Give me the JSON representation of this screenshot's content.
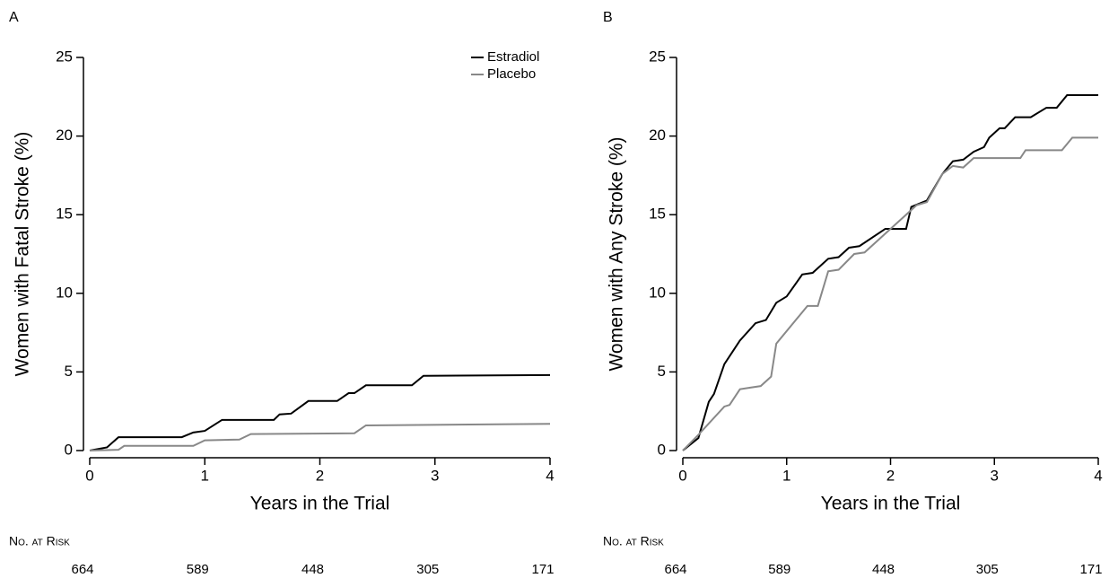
{
  "chart_data": [
    {
      "type": "line",
      "panel_label": "A",
      "xlabel": "Years in the Trial",
      "ylabel": "Women with Fatal Stroke (%)",
      "xlim": [
        0,
        4
      ],
      "xticks": [
        0,
        1,
        2,
        3,
        4
      ],
      "ylim": [
        0,
        25
      ],
      "yticks": [
        0,
        5,
        10,
        15,
        20,
        25
      ],
      "legend": "upper right",
      "series": [
        {
          "name": "Estradiol",
          "color": "#000000",
          "x": [
            0,
            0.15,
            0.25,
            0.8,
            0.9,
            1,
            1.15,
            1.6,
            1.65,
            1.75,
            1.9,
            2.15,
            2.25,
            2.3,
            2.4,
            2.8,
            2.9,
            4
          ],
          "values": [
            0,
            0.2,
            0.85,
            0.85,
            1.15,
            1.25,
            1.95,
            1.95,
            2.3,
            2.35,
            3.15,
            3.15,
            3.65,
            3.65,
            4.15,
            4.15,
            4.75,
            4.8
          ]
        },
        {
          "name": "Placebo",
          "color": "#888888",
          "x": [
            0,
            0.25,
            0.3,
            0.9,
            1,
            1.3,
            1.4,
            2.3,
            2.4,
            4
          ],
          "values": [
            0,
            0.05,
            0.3,
            0.3,
            0.65,
            0.7,
            1.05,
            1.1,
            1.6,
            1.7
          ]
        }
      ],
      "at_risk_title": "No. at Risk",
      "at_risk": [
        664,
        589,
        448,
        305,
        171
      ]
    },
    {
      "type": "line",
      "panel_label": "B",
      "xlabel": "Years in the Trial",
      "ylabel": "Women with Any Stroke (%)",
      "xlim": [
        0,
        4
      ],
      "xticks": [
        0,
        1,
        2,
        3,
        4
      ],
      "ylim": [
        0,
        25
      ],
      "yticks": [
        0,
        5,
        10,
        15,
        20,
        25
      ],
      "series": [
        {
          "color": "#000000",
          "x": [
            0,
            0.15,
            0.25,
            0.3,
            0.4,
            0.55,
            0.7,
            0.8,
            0.9,
            1,
            1.15,
            1.25,
            1.4,
            1.5,
            1.6,
            1.7,
            1.95,
            2.15,
            2.2,
            2.35,
            2.5,
            2.6,
            2.7,
            2.8,
            2.9,
            2.95,
            3.05,
            3.1,
            3.2,
            3.35,
            3.5,
            3.6,
            3.7,
            4
          ],
          "values": [
            0,
            0.8,
            3.1,
            3.6,
            5.5,
            7.0,
            8.1,
            8.3,
            9.4,
            9.8,
            11.2,
            11.3,
            12.2,
            12.3,
            12.9,
            13.0,
            14.1,
            14.1,
            15.5,
            15.9,
            17.6,
            18.4,
            18.5,
            19.0,
            19.3,
            19.9,
            20.5,
            20.5,
            21.2,
            21.2,
            21.8,
            21.8,
            22.6,
            22.6
          ]
        },
        {
          "color": "#888888",
          "x": [
            0,
            0.15,
            0.4,
            0.45,
            0.55,
            0.65,
            0.75,
            0.85,
            0.9,
            1.2,
            1.3,
            1.4,
            1.5,
            1.65,
            1.75,
            2.25,
            2.35,
            2.5,
            2.6,
            2.7,
            2.8,
            3.25,
            3.3,
            3.65,
            3.75,
            4
          ],
          "values": [
            0,
            1.0,
            2.8,
            2.9,
            3.9,
            4.0,
            4.1,
            4.7,
            6.8,
            9.2,
            9.2,
            11.4,
            11.5,
            12.5,
            12.6,
            15.6,
            15.8,
            17.6,
            18.1,
            18.0,
            18.6,
            18.6,
            19.1,
            19.1,
            19.9,
            19.9
          ]
        }
      ],
      "at_risk_title": "No. at Risk",
      "at_risk": [
        664,
        589,
        448,
        305,
        171
      ]
    }
  ]
}
